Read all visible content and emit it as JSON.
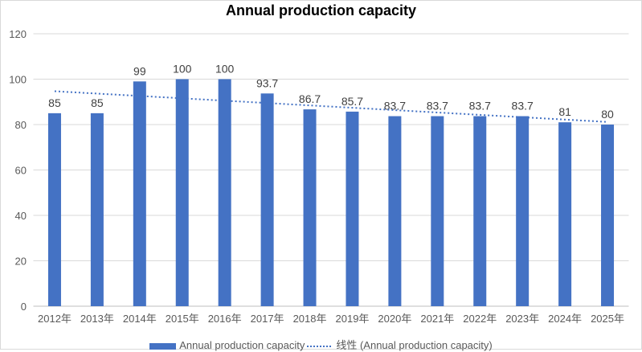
{
  "chart_data": {
    "type": "bar",
    "title": "Annual production capacity",
    "categories": [
      "2012年",
      "2013年",
      "2014年",
      "2015年",
      "2016年",
      "2017年",
      "2018年",
      "2019年",
      "2020年",
      "2021年",
      "2022年",
      "2023年",
      "2024年",
      "2025年"
    ],
    "series": [
      {
        "name": "Annual production capacity",
        "values": [
          85,
          85,
          99,
          100,
          100,
          93.7,
          86.7,
          85.7,
          83.7,
          83.7,
          83.7,
          83.7,
          81,
          80
        ],
        "color": "#4472c4"
      }
    ],
    "trendline": {
      "name": "线性 (Annual production capacity)",
      "type": "linear",
      "style": "dotted",
      "color": "#4472c4"
    },
    "ylim": [
      0,
      120
    ],
    "yticks": [
      0,
      20,
      40,
      60,
      80,
      100,
      120
    ],
    "grid": true,
    "data_labels": true,
    "legend": "bottom"
  }
}
